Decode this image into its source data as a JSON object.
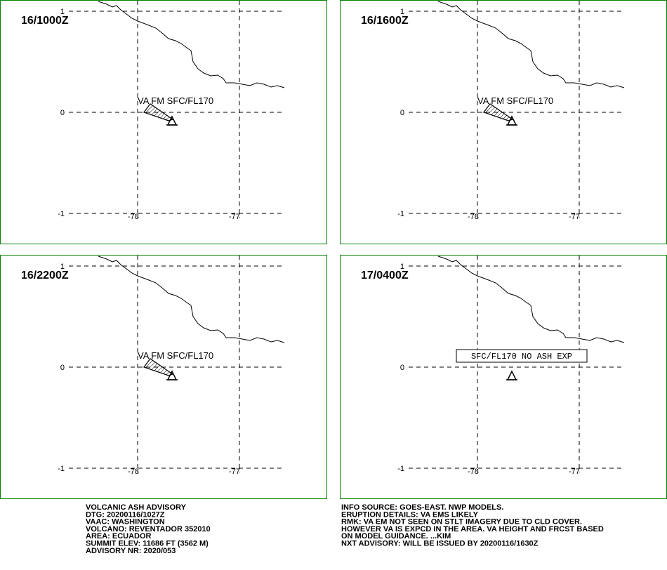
{
  "panels": [
    {
      "time": "16/1000Z",
      "va_label": "VA FM SFC/FL170"
    },
    {
      "time": "16/1600Z",
      "va_label": "VA FM SFC/FL170"
    },
    {
      "time": "16/2200Z",
      "va_label": "VA FM SFC/FL170"
    },
    {
      "time": "17/0400Z",
      "no_ash_label": "SFC/FL170 NO ASH EXP"
    }
  ],
  "lat_ticks": [
    "1",
    "0",
    "-1"
  ],
  "lon_ticks": [
    "-78",
    "-77"
  ],
  "advisory_left": [
    "VOLCANIC ASH ADVISORY",
    "DTG: 20200116/1027Z",
    "VAAC: WASHINGTON",
    "VOLCANO: REVENTADOR 352010",
    "AREA: ECUADOR",
    "SUMMIT ELEV: 11686 FT (3562 M)",
    "ADVISORY NR: 2020/053"
  ],
  "advisory_right": [
    "INFO SOURCE: GOES-EAST. NWP MODELS.",
    "ERUPTION DETAILS: VA EMS LIKELY",
    "RMK: VA EM NOT SEEN ON STLT IMAGERY DUE TO CLD COVER.",
    "HOWEVER VA IS EXPCD IN THE AREA. VA HEIGHT AND FRCST BASED",
    "ON MODEL GUIDANCE. ...KIM",
    "NXT ADVISORY: WILL BE ISSUED BY 20200116/1630Z"
  ]
}
